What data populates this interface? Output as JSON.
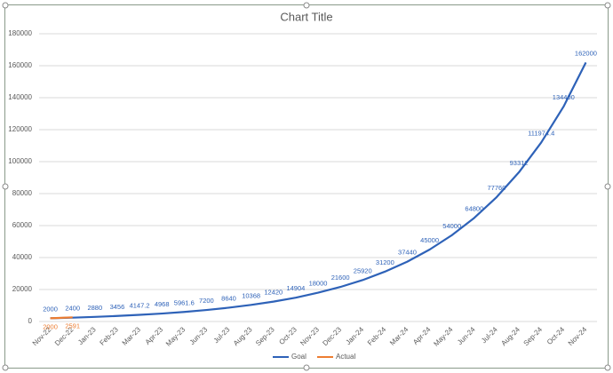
{
  "chart_data": {
    "type": "line",
    "title": "Chart Title",
    "categories": [
      "Nov-22",
      "Dec-22",
      "Jan-23",
      "Feb-23",
      "Mar-23",
      "Apr-23",
      "May-23",
      "Jun-23",
      "Jul-23",
      "Aug-23",
      "Sep-23",
      "Oct-23",
      "Nov-23",
      "Dec-23",
      "Jan-24",
      "Feb-24",
      "Mar-24",
      "Apr-24",
      "May-24",
      "Jun-24",
      "Jul-24",
      "Aug-24",
      "Sep-24",
      "Oct-24",
      "Nov-24"
    ],
    "series": [
      {
        "name": "Goal",
        "color": "#2e62b8",
        "values": [
          2000,
          2400,
          2880,
          3456,
          4147.2,
          4968,
          5961.6,
          7200,
          8640,
          10368,
          12420,
          14904,
          18000,
          21600,
          25920,
          31200,
          37440,
          45000,
          54000,
          64800,
          77760,
          93312,
          111974.4,
          134400,
          162000
        ]
      },
      {
        "name": "Actual",
        "color": "#ed7d31",
        "values": [
          2000,
          2591,
          null,
          null,
          null,
          null,
          null,
          null,
          null,
          null,
          null,
          null,
          null,
          null,
          null,
          null,
          null,
          null,
          null,
          null,
          null,
          null,
          null,
          null,
          null
        ]
      }
    ],
    "ylim": [
      0,
      180000
    ],
    "yticks": [
      0,
      20000,
      40000,
      60000,
      80000,
      100000,
      120000,
      140000,
      160000,
      180000
    ],
    "grid": true,
    "legend": "bottom"
  }
}
